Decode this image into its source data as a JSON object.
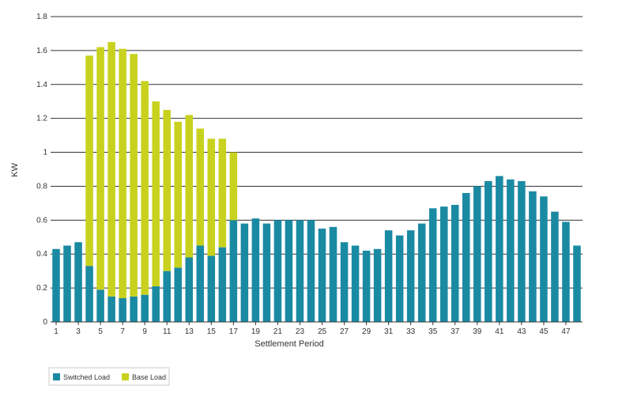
{
  "chart_data": {
    "type": "bar",
    "stacked": true,
    "xlabel": "Settlement Period",
    "ylabel": "KW",
    "ylim": [
      0,
      1.8
    ],
    "yticks": [
      "0",
      "0.2",
      "0.4",
      "0.6",
      "0.8",
      "1",
      "1.2",
      "1.4",
      "1.6",
      "1.8"
    ],
    "categories": [
      1,
      2,
      3,
      4,
      5,
      6,
      7,
      8,
      9,
      10,
      11,
      12,
      13,
      14,
      15,
      16,
      17,
      18,
      19,
      20,
      21,
      22,
      23,
      24,
      25,
      26,
      27,
      28,
      29,
      30,
      31,
      32,
      33,
      34,
      35,
      36,
      37,
      38,
      39,
      40,
      41,
      42,
      43,
      44,
      45,
      46,
      47,
      48
    ],
    "xtick_labels": [
      "1",
      "3",
      "5",
      "7",
      "9",
      "11",
      "13",
      "15",
      "17",
      "19",
      "21",
      "23",
      "25",
      "27",
      "29",
      "31",
      "33",
      "35",
      "37",
      "39",
      "41",
      "43",
      "45",
      "47"
    ],
    "grid": true,
    "legend_position": "bottom-left",
    "series": [
      {
        "name": "Switched Load",
        "color": "#1a8aa3",
        "values": [
          0.43,
          0.45,
          0.47,
          0.33,
          0.19,
          0.15,
          0.14,
          0.15,
          0.16,
          0.21,
          0.3,
          0.32,
          0.38,
          0.45,
          0.39,
          0.44,
          0.6,
          0.58,
          0.61,
          0.58,
          0.6,
          0.6,
          0.6,
          0.6,
          0.55,
          0.56,
          0.47,
          0.45,
          0.42,
          0.43,
          0.54,
          0.51,
          0.54,
          0.58,
          0.67,
          0.68,
          0.69,
          0.76,
          0.8,
          0.83,
          0.86,
          0.84,
          0.83,
          0.77,
          0.74,
          0.65,
          0.59,
          0.45
        ]
      },
      {
        "name": "Base Load",
        "color": "#c8d21e",
        "values": [
          0,
          0,
          0,
          1.24,
          1.43,
          1.5,
          1.47,
          1.43,
          1.26,
          1.09,
          0.95,
          0.86,
          0.84,
          0.69,
          0.69,
          0.64,
          0.4,
          0,
          0,
          0,
          0,
          0,
          0,
          0,
          0,
          0,
          0,
          0,
          0,
          0,
          0,
          0,
          0,
          0,
          0,
          0,
          0,
          0,
          0,
          0,
          0,
          0,
          0,
          0,
          0,
          0,
          0,
          0
        ]
      }
    ]
  }
}
